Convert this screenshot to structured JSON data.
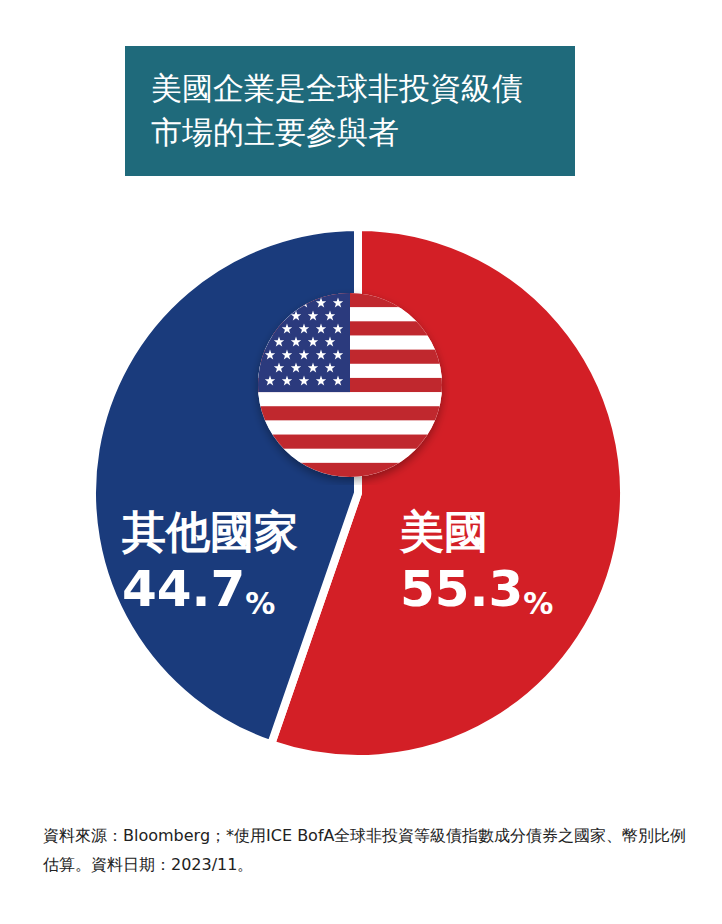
{
  "chart_data": {
    "type": "pie",
    "title": "美國企業是全球非投資級債\n市場的主要參與者",
    "categories": [
      "美國",
      "其他國家"
    ],
    "values": [
      55.3,
      44.7
    ],
    "value_labels": [
      "55.3%",
      "44.7%"
    ],
    "colors": [
      "#d31f26",
      "#1a3b7c"
    ],
    "data_labels": true,
    "legend": false,
    "note": "資料來源：Bloomberg；*使用ICE BofA全球非投資等級債指數成分債券之國家、幣別比例估算。資料日期：2023/11。"
  }
}
